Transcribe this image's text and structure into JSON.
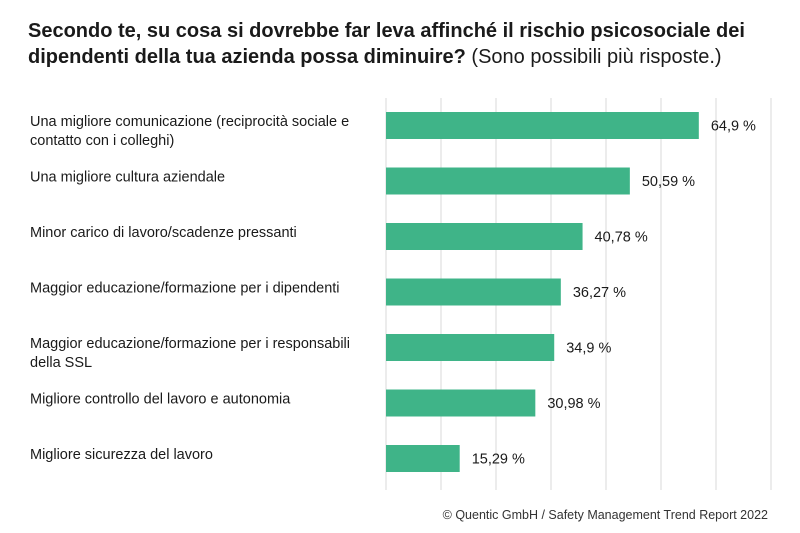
{
  "title": {
    "bold": "Secondo te, su cosa si dovrebbe far leva affinché il rischio psicosociale dei dipendenti della tua azienda possa diminuire?",
    "normal": "(Sono possibili più risposte.)"
  },
  "source": "© Quentic GmbH / Safety Management Trend Report 2022",
  "colors": {
    "bar": "#3fb488",
    "grid": "#d9d9d9"
  },
  "chart_data": {
    "type": "bar",
    "orientation": "horizontal",
    "categories": [
      [
        "Una migliore comunicazione (reciprocità sociale e",
        "contatto con i colleghi)"
      ],
      [
        "Una migliore cultura aziendale"
      ],
      [
        "Minor carico di lavoro/scadenze pressanti"
      ],
      [
        "Maggior educazione/formazione per i dipendenti"
      ],
      [
        "Maggior educazione/formazione per i responsabili",
        "della SSL"
      ],
      [
        "Migliore controllo del lavoro e autonomia"
      ],
      [
        "Migliore sicurezza del lavoro"
      ]
    ],
    "values": [
      64.9,
      50.59,
      40.78,
      36.27,
      34.9,
      30.98,
      15.29
    ],
    "value_labels": [
      "64,9 %",
      "50,59 %",
      "40,78 %",
      "36,27 %",
      "34,9 %",
      "30,98 %",
      "15,29 %"
    ],
    "xlim": [
      0,
      70
    ],
    "grid": true
  }
}
